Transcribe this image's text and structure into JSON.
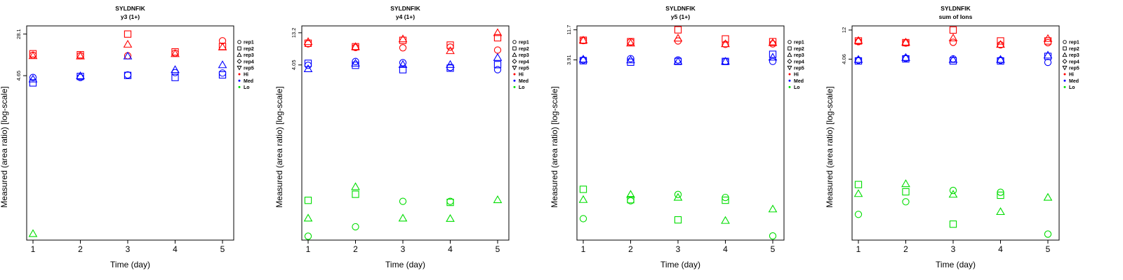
{
  "chart_data": [
    {
      "type": "scatter",
      "title": "SYLDNFIK",
      "subtitle": "y3 (1+)",
      "xlabel": "Time (day)",
      "ylabel": "Measured (area ratio) [log-scale]",
      "ylog": true,
      "x_ticks": [
        1,
        2,
        3,
        4,
        5
      ],
      "y_ticks": [
        {
          "value": 28.1,
          "label": "28.1"
        },
        {
          "value": 4.65,
          "label": "4.65"
        }
      ],
      "ylim": [
        0.0038,
        40
      ],
      "legend": {
        "position": "right",
        "markers": [
          "rep1",
          "rep2",
          "rep3",
          "rep4",
          "rep5"
        ],
        "levels": [
          "Hi",
          "Med",
          "Lo"
        ]
      },
      "series": [
        {
          "name": "Hi",
          "color": "#ff0000",
          "points": {
            "rep1": [
              [
                1,
                11.3
              ],
              [
                2,
                11.0
              ],
              [
                3,
                11.0
              ],
              [
                4,
                12.3
              ],
              [
                5,
                21.0
              ]
            ],
            "rep2": [
              [
                1,
                12.0
              ],
              [
                2,
                11.5
              ],
              [
                3,
                28.1
              ],
              [
                4,
                13.0
              ],
              [
                5,
                16.5
              ]
            ],
            "rep3": [
              [
                1,
                11.0
              ],
              [
                2,
                10.8
              ],
              [
                3,
                18.0
              ],
              [
                4,
                12.0
              ],
              [
                5,
                16.0
              ]
            ]
          }
        },
        {
          "name": "Med",
          "color": "#0000ff",
          "points": {
            "rep1": [
              [
                1,
                4.3
              ],
              [
                2,
                4.3
              ],
              [
                3,
                4.8
              ],
              [
                4,
                5.3
              ],
              [
                5,
                5.2
              ]
            ],
            "rep2": [
              [
                1,
                3.4
              ],
              [
                2,
                4.5
              ],
              [
                3,
                4.7
              ],
              [
                4,
                4.3
              ],
              [
                5,
                4.8
              ]
            ],
            "rep3": [
              [
                1,
                4.0
              ],
              [
                2,
                4.6
              ],
              [
                3,
                10.8
              ],
              [
                4,
                6.0
              ],
              [
                5,
                7.4
              ]
            ]
          }
        },
        {
          "name": "Lo",
          "color": "#00dd00",
          "points": {
            "rep3": [
              [
                1,
                0.005
              ]
            ]
          }
        }
      ]
    },
    {
      "type": "scatter",
      "title": "SYLDNFIK",
      "subtitle": "y4 (1+)",
      "xlabel": "Time (day)",
      "ylabel": "Measured (area ratio) [log-scale]",
      "ylog": true,
      "x_ticks": [
        1,
        2,
        3,
        4,
        5
      ],
      "y_ticks": [
        {
          "value": 13.2,
          "label": "13.2"
        },
        {
          "value": 4.05,
          "label": "4.05"
        }
      ],
      "ylim": [
        0.0065,
        17
      ],
      "legend": {
        "position": "right",
        "markers": [
          "rep1",
          "rep2",
          "rep3",
          "rep4",
          "rep5"
        ],
        "levels": [
          "Hi",
          "Med",
          "Lo"
        ]
      },
      "series": [
        {
          "name": "Hi",
          "color": "#ff0000",
          "points": {
            "rep1": [
              [
                1,
                8.8
              ],
              [
                2,
                7.7
              ],
              [
                3,
                7.6
              ],
              [
                4,
                7.8
              ],
              [
                5,
                7.0
              ]
            ],
            "rep2": [
              [
                1,
                9.0
              ],
              [
                2,
                7.9
              ],
              [
                3,
                10.0
              ],
              [
                4,
                8.4
              ],
              [
                5,
                11.0
              ]
            ],
            "rep3": [
              [
                1,
                9.5
              ],
              [
                2,
                7.9
              ],
              [
                3,
                10.5
              ],
              [
                4,
                6.8
              ],
              [
                5,
                13.2
              ]
            ]
          }
        },
        {
          "name": "Med",
          "color": "#0000ff",
          "points": {
            "rep1": [
              [
                1,
                4.0
              ],
              [
                2,
                4.6
              ],
              [
                3,
                4.4
              ],
              [
                4,
                3.7
              ],
              [
                5,
                3.4
              ]
            ],
            "rep2": [
              [
                1,
                4.3
              ],
              [
                2,
                4.0
              ],
              [
                3,
                3.4
              ],
              [
                4,
                3.6
              ],
              [
                5,
                4.1
              ]
            ],
            "rep3": [
              [
                1,
                3.5
              ],
              [
                2,
                4.3
              ],
              [
                3,
                4.1
              ],
              [
                4,
                4.1
              ],
              [
                5,
                5.3
              ]
            ]
          }
        },
        {
          "name": "Lo",
          "color": "#00dd00",
          "points": {
            "rep1": [
              [
                1,
                0.0075
              ],
              [
                2,
                0.0106
              ],
              [
                3,
                0.027
              ],
              [
                4,
                0.027
              ]
            ],
            "rep2": [
              [
                1,
                0.028
              ],
              [
                2,
                0.035
              ],
              [
                4,
                0.026
              ]
            ],
            "rep3": [
              [
                1,
                0.0145
              ],
              [
                2,
                0.046
              ],
              [
                3,
                0.0145
              ],
              [
                4,
                0.0143
              ],
              [
                5,
                0.0285
              ]
            ]
          }
        }
      ]
    },
    {
      "type": "scatter",
      "title": "SYLDNFIK",
      "subtitle": "y5 (1+)",
      "xlabel": "Time (day)",
      "ylabel": "Measured (area ratio) [log-scale]",
      "ylog": true,
      "x_ticks": [
        1,
        2,
        3,
        4,
        5
      ],
      "y_ticks": [
        {
          "value": 11.7,
          "label": "11.7"
        },
        {
          "value": 3.91,
          "label": "3.91"
        }
      ],
      "ylim": [
        0.0055,
        13.5
      ],
      "legend": {
        "position": "right",
        "markers": [
          "rep1",
          "rep2",
          "rep3",
          "rep4",
          "rep5"
        ],
        "levels": [
          "Hi",
          "Med",
          "Lo"
        ]
      },
      "series": [
        {
          "name": "Hi",
          "color": "#ff0000",
          "points": {
            "rep1": [
              [
                1,
                7.9
              ],
              [
                2,
                7.5
              ],
              [
                3,
                7.8
              ],
              [
                4,
                6.9
              ],
              [
                5,
                7.0
              ]
            ],
            "rep2": [
              [
                1,
                8.0
              ],
              [
                2,
                7.6
              ],
              [
                3,
                11.7
              ],
              [
                4,
                8.4
              ],
              [
                5,
                7.6
              ]
            ],
            "rep3": [
              [
                1,
                8.0
              ],
              [
                2,
                7.2
              ],
              [
                3,
                8.6
              ],
              [
                4,
                7.0
              ],
              [
                5,
                7.3
              ]
            ]
          }
        },
        {
          "name": "Med",
          "color": "#0000ff",
          "points": {
            "rep1": [
              [
                1,
                3.9
              ],
              [
                2,
                4.1
              ],
              [
                3,
                3.9
              ],
              [
                4,
                3.7
              ],
              [
                5,
                3.7
              ]
            ],
            "rep2": [
              [
                1,
                3.8
              ],
              [
                2,
                3.6
              ],
              [
                3,
                3.7
              ],
              [
                4,
                3.7
              ],
              [
                5,
                4.8
              ]
            ],
            "rep3": [
              [
                1,
                4.0
              ],
              [
                2,
                3.9
              ],
              [
                3,
                3.7
              ],
              [
                4,
                3.7
              ],
              [
                5,
                4.3
              ]
            ]
          }
        },
        {
          "name": "Lo",
          "color": "#00dd00",
          "points": {
            "rep1": [
              [
                1,
                0.012
              ],
              [
                2,
                0.023
              ],
              [
                3,
                0.029
              ],
              [
                4,
                0.026
              ],
              [
                5,
                0.0064
              ]
            ],
            "rep2": [
              [
                1,
                0.035
              ],
              [
                2,
                0.024
              ],
              [
                3,
                0.0115
              ],
              [
                4,
                0.0235
              ]
            ],
            "rep3": [
              [
                1,
                0.024
              ],
              [
                2,
                0.029
              ],
              [
                3,
                0.026
              ],
              [
                4,
                0.0112
              ],
              [
                5,
                0.017
              ]
            ]
          }
        }
      ]
    },
    {
      "type": "scatter",
      "title": "SYLDNFIK",
      "subtitle": "sum of Ions",
      "xlabel": "Time (day)",
      "ylabel": "Measured (area ratio) [log-scale]",
      "ylog": true,
      "x_ticks": [
        1,
        2,
        3,
        4,
        5
      ],
      "y_ticks": [
        {
          "value": 12,
          "label": "12"
        },
        {
          "value": 4.06,
          "label": "4.06"
        }
      ],
      "ylim": [
        0.0048,
        14
      ],
      "legend": {
        "position": "right",
        "markers": [
          "rep1",
          "rep2",
          "rep3",
          "rep4",
          "rep5"
        ],
        "levels": [
          "Hi",
          "Med",
          "Lo"
        ]
      },
      "series": [
        {
          "name": "Hi",
          "color": "#ff0000",
          "points": {
            "rep1": [
              [
                1,
                7.8
              ],
              [
                2,
                7.4
              ],
              [
                3,
                7.6
              ],
              [
                4,
                6.9
              ],
              [
                5,
                7.5
              ]
            ],
            "rep2": [
              [
                1,
                8.0
              ],
              [
                2,
                7.5
              ],
              [
                3,
                12.0
              ],
              [
                4,
                8.0
              ],
              [
                5,
                8.0
              ]
            ],
            "rep3": [
              [
                1,
                8.1
              ],
              [
                2,
                7.6
              ],
              [
                3,
                8.9
              ],
              [
                4,
                7.0
              ],
              [
                5,
                8.7
              ]
            ]
          }
        },
        {
          "name": "Med",
          "color": "#0000ff",
          "points": {
            "rep1": [
              [
                1,
                3.9
              ],
              [
                2,
                4.2
              ],
              [
                3,
                4.1
              ],
              [
                4,
                3.9
              ],
              [
                5,
                3.6
              ]
            ],
            "rep2": [
              [
                1,
                3.8
              ],
              [
                2,
                4.1
              ],
              [
                3,
                3.8
              ],
              [
                4,
                3.8
              ],
              [
                5,
                4.5
              ]
            ],
            "rep3": [
              [
                1,
                4.0
              ],
              [
                2,
                4.3
              ],
              [
                3,
                4.0
              ],
              [
                4,
                4.0
              ],
              [
                5,
                4.7
              ]
            ]
          }
        },
        {
          "name": "Lo",
          "color": "#00dd00",
          "points": {
            "rep1": [
              [
                1,
                0.0125
              ],
              [
                2,
                0.02
              ],
              [
                3,
                0.0305
              ],
              [
                4,
                0.0285
              ],
              [
                5,
                0.006
              ]
            ],
            "rep2": [
              [
                1,
                0.038
              ],
              [
                2,
                0.029
              ],
              [
                3,
                0.0087
              ],
              [
                4,
                0.0255
              ]
            ],
            "rep3": [
              [
                1,
                0.027
              ],
              [
                2,
                0.039
              ],
              [
                3,
                0.0263
              ],
              [
                4,
                0.0138
              ],
              [
                5,
                0.0235
              ]
            ]
          }
        }
      ]
    }
  ]
}
